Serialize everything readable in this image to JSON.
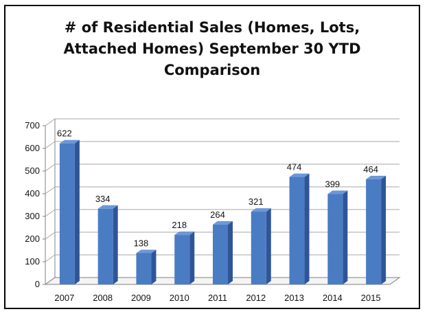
{
  "chart_data": {
    "type": "bar",
    "title_lines": [
      "# of Residential Sales (Homes, Lots,",
      "Attached Homes) September 30 YTD",
      "Comparison"
    ],
    "categories": [
      "2007",
      "2008",
      "2009",
      "2010",
      "2011",
      "2012",
      "2013",
      "2014",
      "2015"
    ],
    "values": [
      622,
      334,
      138,
      218,
      264,
      321,
      474,
      399,
      464
    ],
    "data_labels": [
      "622",
      "334",
      "138",
      "218",
      "264",
      "321",
      "474",
      "399",
      "464"
    ],
    "y_ticks": [
      "0",
      "100",
      "200",
      "300",
      "400",
      "500",
      "600",
      "700"
    ],
    "ylim": [
      0,
      700
    ],
    "grid": true,
    "legend": "none",
    "style": "3d-column",
    "colors": {
      "bar_front": "#4a7cc4",
      "bar_side": "#2f5597",
      "bar_top": "#6d97d6",
      "grid": "#a6a6a6",
      "wall": "#7f7f7f"
    }
  }
}
